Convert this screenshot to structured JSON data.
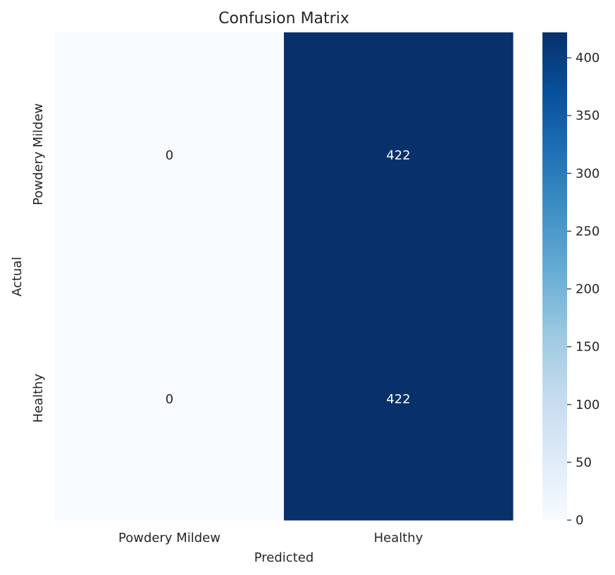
{
  "chart_data": {
    "type": "heatmap",
    "title": "Confusion Matrix",
    "xlabel": "Predicted",
    "ylabel": "Actual",
    "x_categories": [
      "Powdery Mildew",
      "Healthy"
    ],
    "y_categories": [
      "Powdery Mildew",
      "Healthy"
    ],
    "values": [
      [
        0,
        422
      ],
      [
        0,
        422
      ]
    ],
    "colormap": "Blues",
    "color_low": "#f7fbff",
    "color_high": "#08306b",
    "colorbar": {
      "min": 0,
      "max": 422,
      "ticks": [
        0,
        50,
        100,
        150,
        200,
        250,
        300,
        350,
        400
      ]
    },
    "annotated": true,
    "grid": false
  }
}
